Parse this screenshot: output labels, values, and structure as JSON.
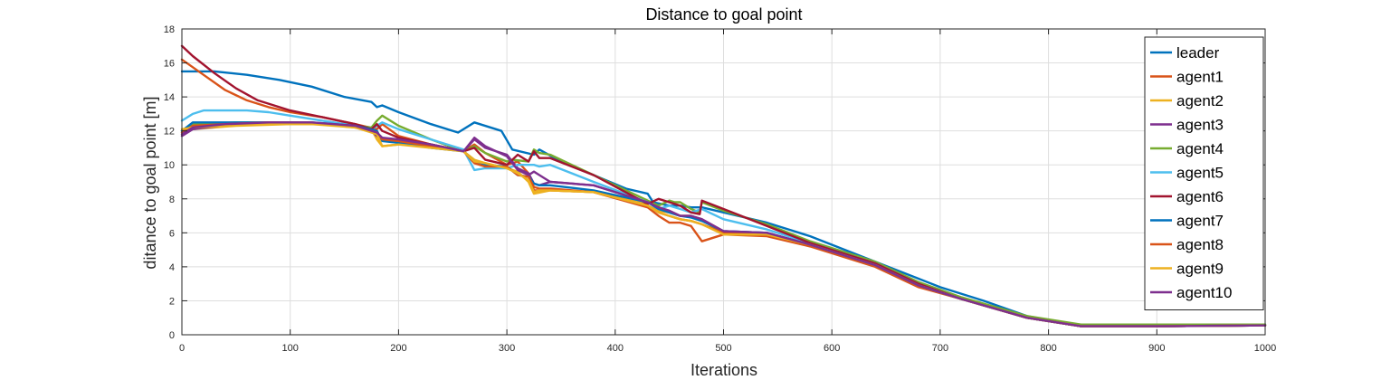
{
  "chart_data": {
    "type": "line",
    "title": "Distance to goal point",
    "xlabel": "Iterations",
    "ylabel": "ditance to goal point [m]",
    "xlim": [
      0,
      1000
    ],
    "ylim": [
      0,
      18
    ],
    "xticks": [
      0,
      100,
      200,
      300,
      400,
      500,
      600,
      700,
      800,
      900,
      1000
    ],
    "yticks": [
      0,
      2,
      4,
      6,
      8,
      10,
      12,
      14,
      16,
      18
    ],
    "grid": true,
    "legend_position": "top-right",
    "series": [
      {
        "name": "leader",
        "color": "#0072BD",
        "x": [
          0,
          30,
          60,
          90,
          120,
          150,
          175,
          180,
          185,
          200,
          230,
          255,
          270,
          295,
          305,
          325,
          330,
          350,
          380,
          410,
          430,
          435,
          450,
          460,
          470,
          480,
          500,
          540,
          580,
          620,
          660,
          680,
          700,
          740,
          780,
          820,
          830,
          860,
          900,
          950,
          1000
        ],
        "y": [
          15.5,
          15.5,
          15.3,
          15.0,
          14.6,
          14.0,
          13.7,
          13.4,
          13.5,
          13.1,
          12.4,
          11.9,
          12.5,
          12.0,
          10.9,
          10.6,
          10.9,
          10.2,
          9.4,
          8.6,
          8.3,
          7.8,
          7.6,
          7.6,
          7.5,
          7.5,
          7.2,
          6.6,
          5.8,
          4.8,
          3.8,
          3.3,
          2.8,
          2.0,
          1.1,
          0.6,
          0.6,
          0.6,
          0.6,
          0.6,
          0.6
        ]
      },
      {
        "name": "agent1",
        "color": "#D95319",
        "x": [
          0,
          20,
          40,
          60,
          80,
          100,
          130,
          160,
          180,
          185,
          200,
          230,
          260,
          270,
          280,
          300,
          310,
          320,
          325,
          340,
          380,
          430,
          440,
          450,
          460,
          470,
          480,
          500,
          540,
          580,
          640,
          680,
          720,
          780,
          830,
          900,
          1000
        ],
        "y": [
          16.2,
          15.3,
          14.4,
          13.8,
          13.4,
          13.1,
          12.8,
          12.4,
          12.1,
          12.4,
          11.7,
          11.2,
          10.8,
          11.2,
          10.7,
          10.0,
          10.2,
          9.5,
          8.5,
          8.5,
          8.4,
          7.5,
          7.0,
          6.6,
          6.6,
          6.4,
          5.5,
          5.9,
          5.8,
          5.2,
          4.0,
          2.8,
          2.1,
          1.0,
          0.5,
          0.5,
          0.55
        ]
      },
      {
        "name": "agent2",
        "color": "#EDB120",
        "x": [
          0,
          10,
          50,
          100,
          150,
          175,
          180,
          185,
          200,
          230,
          260,
          270,
          280,
          300,
          310,
          320,
          325,
          340,
          380,
          420,
          430,
          440,
          450,
          460,
          470,
          480,
          500,
          540,
          580,
          640,
          680,
          720,
          780,
          830,
          900,
          1000
        ],
        "y": [
          12.0,
          12.1,
          12.3,
          12.4,
          12.4,
          12.1,
          11.5,
          11.1,
          11.2,
          11.1,
          10.8,
          10.3,
          10.1,
          9.8,
          9.6,
          9.0,
          8.3,
          8.5,
          8.4,
          7.9,
          7.6,
          7.3,
          7.2,
          7.0,
          7.0,
          6.8,
          5.9,
          5.9,
          5.3,
          4.1,
          2.9,
          2.1,
          1.0,
          0.5,
          0.5,
          0.55
        ]
      },
      {
        "name": "agent3",
        "color": "#7E2F8E",
        "x": [
          0,
          10,
          50,
          100,
          150,
          175,
          180,
          185,
          200,
          230,
          260,
          270,
          280,
          300,
          310,
          320,
          325,
          330,
          340,
          380,
          430,
          440,
          450,
          460,
          470,
          480,
          500,
          540,
          580,
          640,
          680,
          720,
          780,
          830,
          900,
          1000
        ],
        "y": [
          11.7,
          12.1,
          12.4,
          12.5,
          12.4,
          12.0,
          11.7,
          11.5,
          11.5,
          11.2,
          10.8,
          11.5,
          11.0,
          10.6,
          9.8,
          9.5,
          8.9,
          8.8,
          9.0,
          8.8,
          7.8,
          7.5,
          7.3,
          7.0,
          7.0,
          6.8,
          6.1,
          6.0,
          5.3,
          4.1,
          2.9,
          2.1,
          1.0,
          0.5,
          0.5,
          0.55
        ]
      },
      {
        "name": "agent4",
        "color": "#77AC30",
        "x": [
          0,
          10,
          50,
          100,
          150,
          175,
          180,
          185,
          200,
          230,
          260,
          270,
          280,
          300,
          305,
          320,
          325,
          330,
          340,
          380,
          430,
          440,
          450,
          455,
          460,
          470,
          478,
          480,
          500,
          540,
          580,
          640,
          680,
          720,
          780,
          830,
          900,
          1000
        ],
        "y": [
          12.0,
          12.4,
          12.5,
          12.5,
          12.4,
          12.2,
          12.6,
          12.9,
          12.3,
          11.5,
          10.8,
          11.1,
          10.7,
          10.2,
          10.3,
          10.2,
          10.9,
          10.7,
          10.6,
          9.4,
          7.9,
          7.6,
          7.9,
          7.8,
          7.8,
          7.4,
          7.2,
          7.8,
          7.3,
          6.5,
          5.5,
          4.3,
          3.1,
          2.2,
          1.1,
          0.6,
          0.6,
          0.6
        ]
      },
      {
        "name": "agent5",
        "color": "#4DBEEE",
        "x": [
          0,
          10,
          20,
          40,
          60,
          80,
          100,
          130,
          160,
          175,
          185,
          200,
          230,
          260,
          270,
          280,
          300,
          310,
          320,
          325,
          330,
          340,
          380,
          430,
          440,
          450,
          460,
          470,
          480,
          500,
          540,
          580,
          640,
          680,
          720,
          780,
          830,
          900,
          1000
        ],
        "y": [
          12.6,
          13.0,
          13.2,
          13.2,
          13.2,
          13.1,
          12.9,
          12.6,
          12.3,
          12.1,
          12.5,
          12.1,
          11.5,
          10.9,
          9.7,
          9.8,
          9.8,
          10.0,
          10.0,
          10.0,
          9.9,
          10.0,
          9.0,
          7.8,
          7.4,
          7.6,
          7.4,
          7.2,
          7.4,
          6.8,
          6.2,
          5.4,
          4.2,
          3.0,
          2.1,
          1.0,
          0.5,
          0.5,
          0.55
        ]
      },
      {
        "name": "agent6",
        "color": "#A2142F",
        "x": [
          0,
          10,
          30,
          50,
          70,
          100,
          130,
          160,
          175,
          180,
          185,
          200,
          230,
          260,
          270,
          280,
          300,
          310,
          320,
          325,
          330,
          340,
          380,
          430,
          440,
          450,
          460,
          470,
          478,
          480,
          500,
          540,
          580,
          640,
          680,
          720,
          780,
          830,
          900,
          1000
        ],
        "y": [
          17.0,
          16.4,
          15.4,
          14.5,
          13.8,
          13.2,
          12.8,
          12.4,
          12.1,
          12.4,
          12.0,
          11.6,
          11.2,
          10.8,
          11.0,
          10.3,
          10.0,
          10.6,
          10.2,
          10.8,
          10.4,
          10.4,
          9.4,
          7.7,
          8.0,
          7.8,
          7.6,
          7.2,
          7.1,
          7.9,
          7.4,
          6.4,
          5.4,
          4.2,
          3.0,
          2.1,
          1.0,
          0.5,
          0.5,
          0.55
        ]
      },
      {
        "name": "agent7",
        "color": "#0072BD",
        "x": [
          0,
          10,
          40,
          80,
          120,
          160,
          180,
          185,
          200,
          230,
          260,
          270,
          280,
          300,
          310,
          320,
          325,
          330,
          340,
          380,
          430,
          440,
          450,
          460,
          470,
          480,
          500,
          540,
          580,
          640,
          680,
          720,
          780,
          830,
          900,
          1000
        ],
        "y": [
          12.0,
          12.5,
          12.5,
          12.5,
          12.5,
          12.3,
          12.0,
          11.4,
          11.3,
          11.0,
          10.8,
          10.2,
          10.0,
          9.9,
          9.4,
          9.3,
          8.9,
          8.8,
          8.8,
          8.5,
          7.8,
          7.4,
          7.2,
          7.0,
          6.9,
          6.7,
          6.1,
          6.0,
          5.3,
          4.1,
          2.9,
          2.1,
          1.0,
          0.5,
          0.5,
          0.55
        ]
      },
      {
        "name": "agent8",
        "color": "#D95319",
        "x": [
          0,
          10,
          40,
          80,
          120,
          160,
          180,
          185,
          200,
          230,
          260,
          270,
          280,
          300,
          310,
          320,
          325,
          330,
          340,
          380,
          430,
          440,
          450,
          460,
          470,
          480,
          500,
          540,
          580,
          640,
          680,
          720,
          780,
          830,
          900,
          1000
        ],
        "y": [
          11.9,
          12.3,
          12.4,
          12.5,
          12.5,
          12.2,
          11.9,
          11.5,
          11.4,
          11.1,
          10.8,
          10.1,
          9.9,
          9.9,
          9.4,
          9.3,
          8.7,
          8.6,
          8.6,
          8.4,
          7.6,
          7.2,
          7.0,
          6.8,
          6.7,
          6.5,
          6.0,
          5.9,
          5.3,
          4.1,
          2.9,
          2.1,
          1.0,
          0.5,
          0.5,
          0.55
        ]
      },
      {
        "name": "agent9",
        "color": "#EDB120",
        "x": [
          0,
          10,
          40,
          80,
          120,
          160,
          180,
          185,
          200,
          230,
          260,
          270,
          280,
          300,
          310,
          320,
          325,
          330,
          340,
          380,
          430,
          440,
          450,
          460,
          470,
          480,
          500,
          540,
          580,
          640,
          680,
          720,
          780,
          830,
          900,
          1000
        ],
        "y": [
          12.1,
          12.2,
          12.3,
          12.4,
          12.4,
          12.2,
          11.8,
          11.1,
          11.2,
          11.0,
          10.8,
          10.2,
          10.1,
          9.8,
          9.5,
          9.1,
          8.4,
          8.5,
          8.5,
          8.4,
          7.6,
          7.2,
          7.0,
          6.8,
          6.7,
          6.5,
          5.9,
          5.9,
          5.3,
          4.1,
          2.9,
          2.1,
          1.0,
          0.5,
          0.5,
          0.55
        ]
      },
      {
        "name": "agent10",
        "color": "#7E2F8E",
        "x": [
          0,
          10,
          40,
          80,
          120,
          160,
          180,
          185,
          200,
          230,
          260,
          270,
          280,
          300,
          310,
          320,
          325,
          330,
          340,
          380,
          430,
          440,
          450,
          460,
          470,
          480,
          500,
          540,
          580,
          640,
          680,
          720,
          780,
          830,
          900,
          1000
        ],
        "y": [
          11.8,
          12.2,
          12.4,
          12.5,
          12.5,
          12.3,
          11.9,
          11.6,
          11.5,
          11.2,
          10.8,
          11.6,
          11.1,
          10.5,
          9.7,
          9.4,
          9.6,
          9.4,
          9.0,
          8.8,
          7.8,
          7.5,
          7.3,
          7.0,
          7.0,
          6.8,
          6.1,
          6.0,
          5.3,
          4.1,
          2.9,
          2.1,
          1.0,
          0.5,
          0.5,
          0.55
        ]
      }
    ]
  }
}
